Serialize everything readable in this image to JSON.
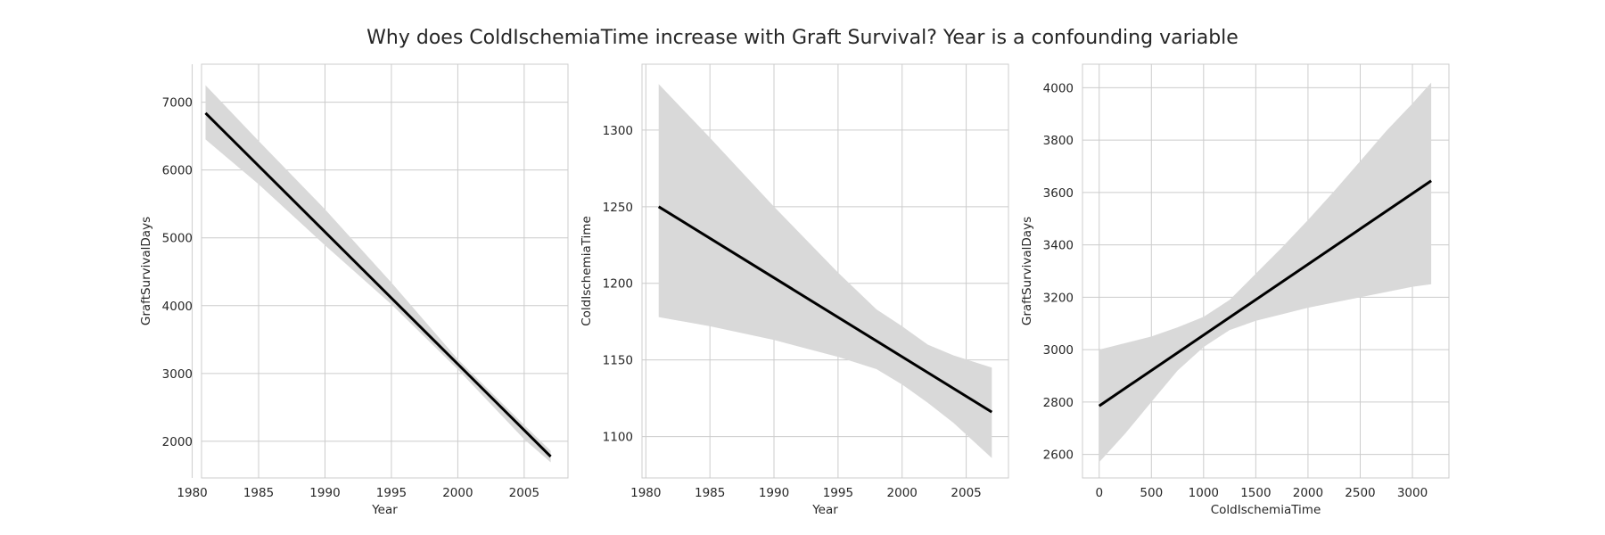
{
  "title": "Why does ColdIschemiaTime increase with Graft Survival? Year is a confounding variable",
  "chart_data": [
    {
      "type": "line",
      "xlabel": "Year",
      "ylabel": "GraftSurvivalDays",
      "xlim": [
        1980.7,
        2008.3
      ],
      "ylim": [
        1460,
        7560
      ],
      "xticks": [
        1980,
        1985,
        1990,
        1995,
        2000,
        2005
      ],
      "yticks": [
        2000,
        3000,
        4000,
        5000,
        6000,
        7000
      ],
      "grid": true,
      "series": [
        {
          "x": [
            1981,
            2007
          ],
          "y": [
            6840,
            1775
          ]
        }
      ],
      "confidence_band": {
        "x": [
          1981,
          1985,
          1990,
          1995,
          2000,
          2005,
          2007
        ],
        "upper": [
          7250,
          6430,
          5420,
          4340,
          3210,
          2240,
          1860
        ],
        "lower": [
          6450,
          5790,
          4890,
          4020,
          3060,
          2030,
          1690
        ]
      }
    },
    {
      "type": "line",
      "xlabel": "Year",
      "ylabel": "ColdIschemiaTime",
      "xlim": [
        1979.7,
        2008.3
      ],
      "ylim": [
        1073,
        1343
      ],
      "xticks": [
        1980,
        1985,
        1990,
        1995,
        2000,
        2005
      ],
      "yticks": [
        1100,
        1150,
        1200,
        1250,
        1300
      ],
      "grid": true,
      "series": [
        {
          "x": [
            1981,
            2007
          ],
          "y": [
            1250,
            1116
          ]
        }
      ],
      "confidence_band": {
        "x": [
          1981,
          1985,
          1990,
          1995,
          1998,
          2000,
          2002,
          2004,
          2007
        ],
        "upper": [
          1330,
          1295,
          1250,
          1207,
          1183,
          1172,
          1160,
          1153,
          1145
        ],
        "lower": [
          1178,
          1172,
          1163,
          1152,
          1144,
          1134,
          1122,
          1109,
          1086
        ]
      }
    },
    {
      "type": "line",
      "xlabel": "ColdIschemiaTime",
      "ylabel": "GraftSurvivalDays",
      "xlim": [
        -160,
        3350
      ],
      "ylim": [
        2510,
        4090
      ],
      "xticks": [
        0,
        500,
        1000,
        1500,
        2000,
        2500,
        3000
      ],
      "yticks": [
        2600,
        2800,
        3000,
        3200,
        3400,
        3600,
        3800,
        4000
      ],
      "grid": true,
      "series": [
        {
          "x": [
            0,
            3180
          ],
          "y": [
            2785,
            3645
          ]
        }
      ],
      "confidence_band": {
        "x": [
          0,
          250,
          500,
          750,
          1000,
          1250,
          1500,
          1750,
          2000,
          2250,
          2500,
          2750,
          3000,
          3180
        ],
        "upper": [
          3000,
          3025,
          3050,
          3085,
          3125,
          3190,
          3290,
          3390,
          3495,
          3605,
          3720,
          3835,
          3940,
          4020
        ],
        "lower": [
          2570,
          2680,
          2800,
          2920,
          3010,
          3075,
          3110,
          3135,
          3160,
          3180,
          3200,
          3220,
          3240,
          3250
        ]
      }
    }
  ]
}
